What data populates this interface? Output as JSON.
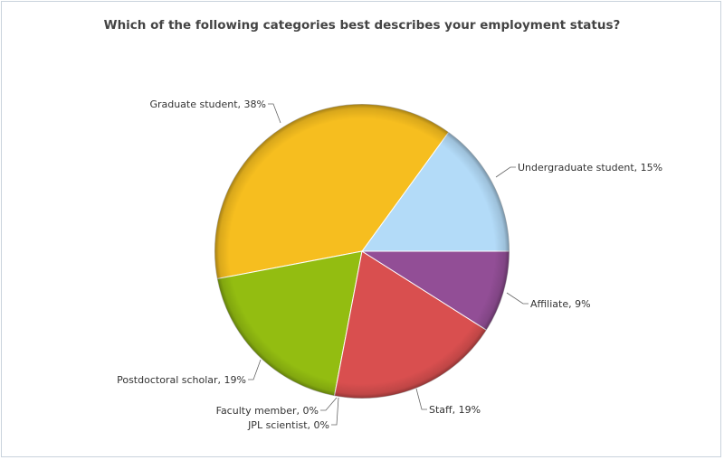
{
  "chart_data": {
    "type": "pie",
    "title": "Which of the following categories best describes your employment status?",
    "slices": [
      {
        "label": "Undergraduate student, 15%",
        "name": "Undergraduate student",
        "value": 15,
        "color": "#b3dbf8"
      },
      {
        "label": "Graduate student, 38%",
        "name": "Graduate student",
        "value": 38,
        "color": "#f6be1f"
      },
      {
        "label": "Postdoctoral scholar, 19%",
        "name": "Postdoctoral scholar",
        "value": 19,
        "color": "#93bd11"
      },
      {
        "label": "Faculty member, 0%",
        "name": "Faculty member",
        "value": 0,
        "color": "#93bd11"
      },
      {
        "label": "JPL scientist, 0%",
        "name": "JPL scientist",
        "value": 0,
        "color": "#93bd11"
      },
      {
        "label": "Staff, 19%",
        "name": "Staff",
        "value": 19,
        "color": "#d94f4f"
      },
      {
        "label": "Affiliate, 9%",
        "name": "Affiliate",
        "value": 9,
        "color": "#924e96"
      }
    ]
  }
}
